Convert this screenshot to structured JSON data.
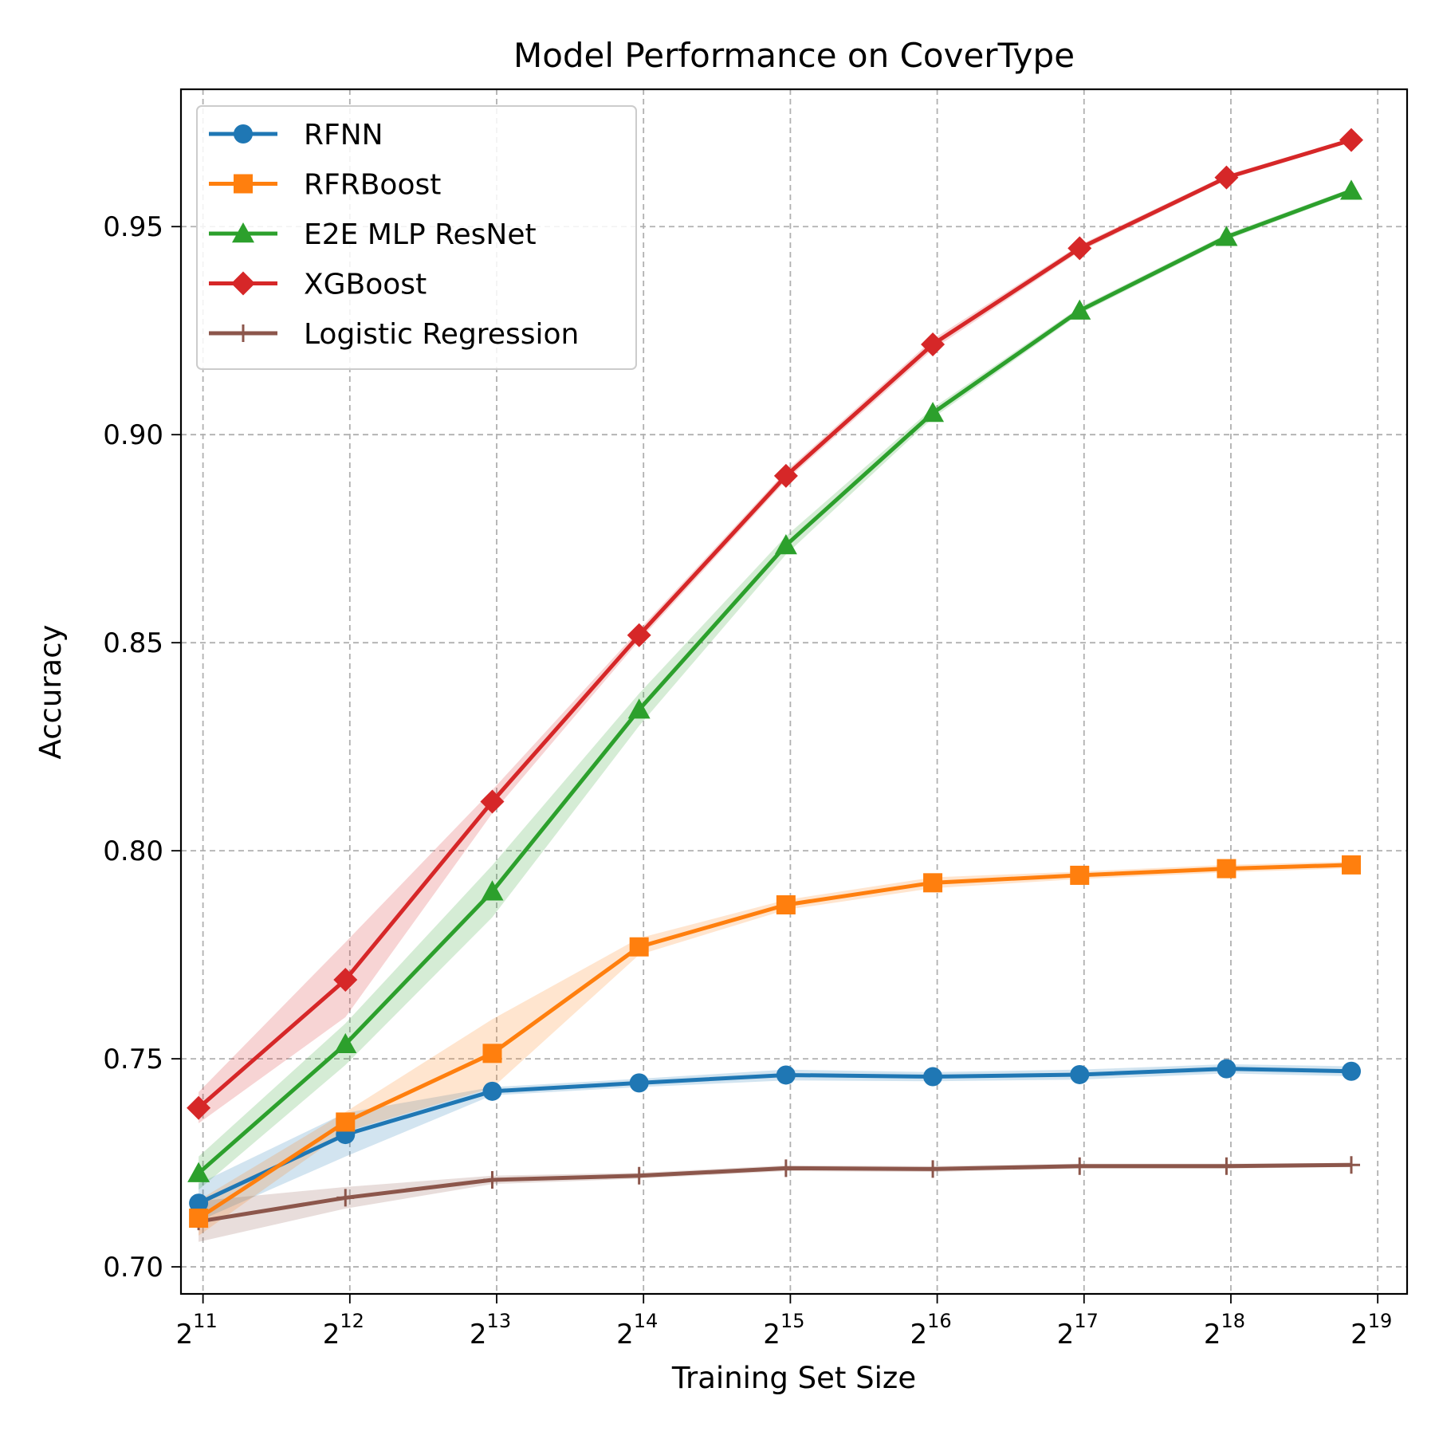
{
  "chart_data": {
    "type": "line",
    "title": "Model Performance on CoverType",
    "xlabel": "Training Set Size",
    "ylabel": "Accuracy",
    "x_scale": "log2",
    "xlim": [
      10.85,
      19.2
    ],
    "ylim": [
      0.6935,
      0.983
    ],
    "x_ticks": [
      {
        "value": 11,
        "base": "2",
        "exp": "11"
      },
      {
        "value": 12,
        "base": "2",
        "exp": "12"
      },
      {
        "value": 13,
        "base": "2",
        "exp": "13"
      },
      {
        "value": 14,
        "base": "2",
        "exp": "14"
      },
      {
        "value": 15,
        "base": "2",
        "exp": "15"
      },
      {
        "value": 16,
        "base": "2",
        "exp": "16"
      },
      {
        "value": 17,
        "base": "2",
        "exp": "17"
      },
      {
        "value": 18,
        "base": "2",
        "exp": "18"
      },
      {
        "value": 19,
        "base": "2",
        "exp": "19"
      }
    ],
    "y_ticks": [
      {
        "value": 0.7,
        "label": "0.70"
      },
      {
        "value": 0.75,
        "label": "0.75"
      },
      {
        "value": 0.8,
        "label": "0.80"
      },
      {
        "value": 0.85,
        "label": "0.85"
      },
      {
        "value": 0.9,
        "label": "0.90"
      },
      {
        "value": 0.95,
        "label": "0.95"
      }
    ],
    "grid": true,
    "legend_position": "upper-left",
    "x": [
      10.97,
      11.97,
      12.97,
      13.97,
      14.97,
      15.97,
      16.97,
      17.97,
      18.82
    ],
    "series": [
      {
        "name": "RFNN",
        "color": "#1f77b4",
        "marker": "circle",
        "values": [
          0.7153,
          0.7318,
          0.7422,
          0.7442,
          0.7461,
          0.7457,
          0.7462,
          0.7476,
          0.747
        ],
        "lower": [
          0.711,
          0.7265,
          0.7412,
          0.7432,
          0.7448,
          0.7446,
          0.745,
          0.7465,
          0.7458
        ],
        "upper": [
          0.72,
          0.737,
          0.7432,
          0.7452,
          0.7474,
          0.7468,
          0.7474,
          0.7487,
          0.7482
        ]
      },
      {
        "name": "RFRBoost",
        "color": "#ff7f0e",
        "marker": "square",
        "values": [
          0.7117,
          0.7348,
          0.7513,
          0.7769,
          0.787,
          0.7923,
          0.7941,
          0.7957,
          0.7966
        ],
        "lower": [
          0.7075,
          0.7325,
          0.743,
          0.775,
          0.7858,
          0.791,
          0.7932,
          0.7948,
          0.7958
        ],
        "upper": [
          0.716,
          0.7372,
          0.7595,
          0.779,
          0.7882,
          0.7936,
          0.795,
          0.7966,
          0.7974
        ]
      },
      {
        "name": "E2E MLP ResNet",
        "color": "#2ca02c",
        "marker": "triangle",
        "values": [
          0.7225,
          0.7535,
          0.7902,
          0.8339,
          0.8734,
          0.9052,
          0.9298,
          0.9475,
          0.9586
        ],
        "lower": [
          0.7185,
          0.7485,
          0.784,
          0.83,
          0.8712,
          0.904,
          0.929,
          0.9468,
          0.958
        ],
        "upper": [
          0.7265,
          0.7585,
          0.7965,
          0.8378,
          0.8756,
          0.9064,
          0.9306,
          0.9482,
          0.9592
        ]
      },
      {
        "name": "XGBoost",
        "color": "#d62728",
        "marker": "diamond",
        "values": [
          0.7382,
          0.769,
          0.8118,
          0.8518,
          0.8901,
          0.9217,
          0.9448,
          0.9618,
          0.9708
        ],
        "lower": [
          0.7345,
          0.76,
          0.809,
          0.8505,
          0.889,
          0.9205,
          0.944,
          0.9612,
          0.9703
        ],
        "upper": [
          0.742,
          0.778,
          0.8146,
          0.8531,
          0.8912,
          0.9229,
          0.9456,
          0.9624,
          0.9713
        ]
      },
      {
        "name": "Logistic Regression",
        "color": "#8c564b",
        "marker": "plus",
        "values": [
          0.7109,
          0.7166,
          0.7209,
          0.7219,
          0.7237,
          0.7235,
          0.7242,
          0.7242,
          0.7245
        ],
        "lower": [
          0.706,
          0.714,
          0.7199,
          0.7212,
          0.723,
          0.7228,
          0.7236,
          0.7236,
          0.724
        ],
        "upper": [
          0.7158,
          0.7192,
          0.7219,
          0.7226,
          0.7244,
          0.7242,
          0.7248,
          0.7248,
          0.725
        ]
      }
    ]
  }
}
